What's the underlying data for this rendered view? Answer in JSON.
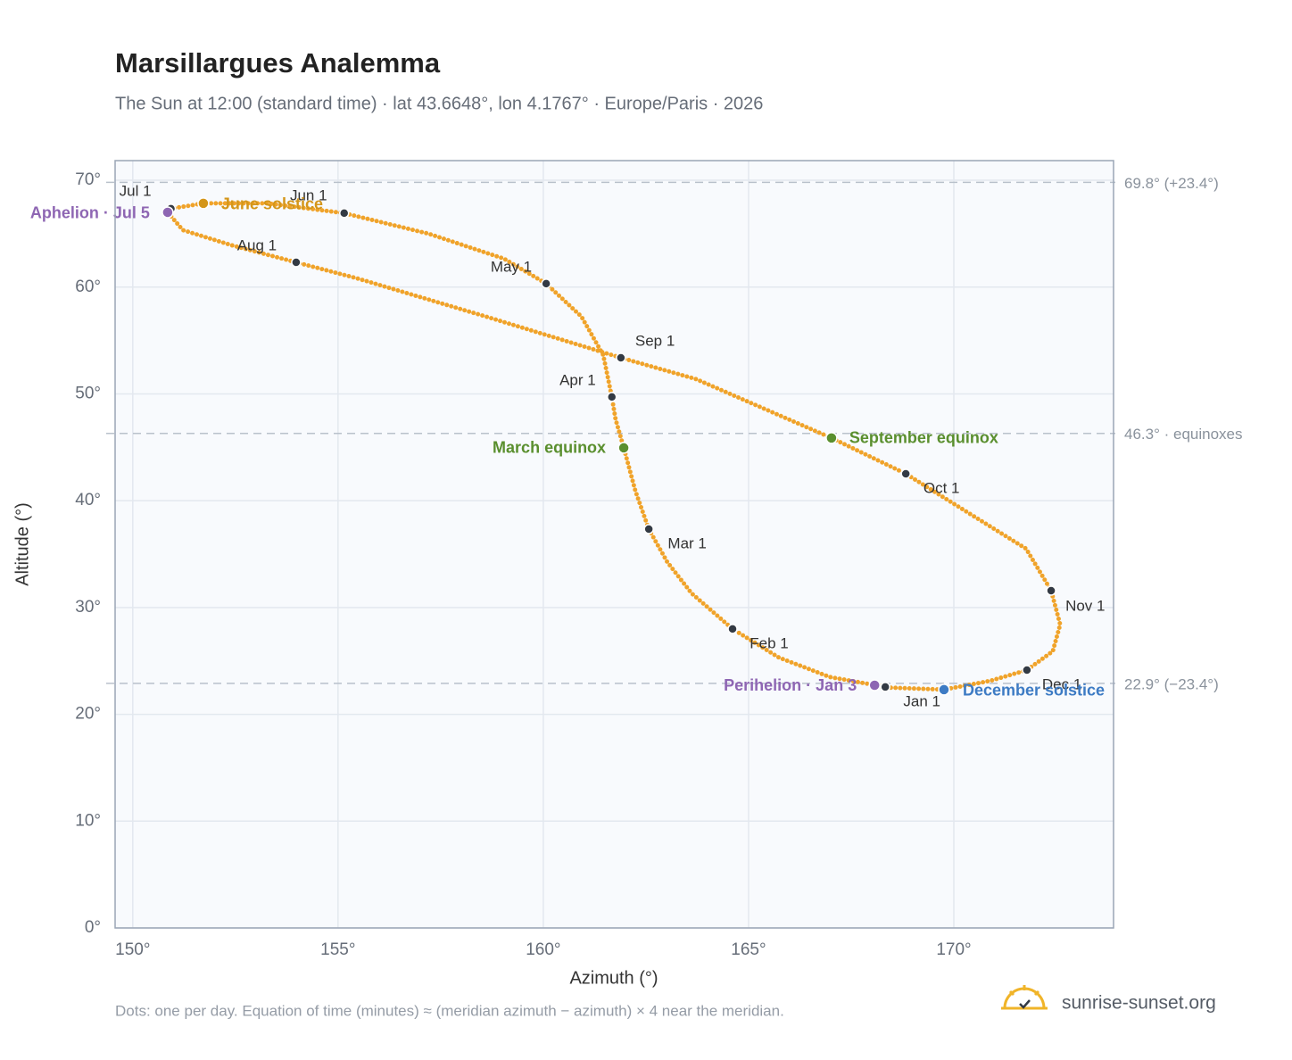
{
  "chart_data": {
    "type": "scatter",
    "title": "Marsillargues Analemma",
    "subtitle": "The Sun at 12:00 (standard time) · lat 43.6648°, lon 4.1767° · Europe/Paris · 2026",
    "xlabel": "Azimuth (°)",
    "ylabel": "Altitude (°)",
    "footnote": "Dots: one per day. Equation of time (minutes) ≈ (meridian azimuth − azimuth) × 4 near the meridian.",
    "brand": "sunrise-sunset.org",
    "xlim": [
      149.57,
      173.89
    ],
    "ylim": [
      0,
      71.84
    ],
    "xticks": [
      {
        "value": 150,
        "label": "150°"
      },
      {
        "value": 155,
        "label": "155°"
      },
      {
        "value": 160,
        "label": "160°"
      },
      {
        "value": 165,
        "label": "165°"
      },
      {
        "value": 170,
        "label": "170°"
      }
    ],
    "yticks": [
      {
        "value": 0,
        "label": "0°"
      },
      {
        "value": 10,
        "label": "10°"
      },
      {
        "value": 20,
        "label": "20°"
      },
      {
        "value": 30,
        "label": "30°"
      },
      {
        "value": 40,
        "label": "40°"
      },
      {
        "value": 50,
        "label": "50°"
      },
      {
        "value": 60,
        "label": "60°"
      },
      {
        "value": 70,
        "label": "70°"
      }
    ],
    "grid": true,
    "path_color": "#f0a32a",
    "x": [
      168.33,
      166.98,
      165.74,
      164.61,
      163.61,
      163.02,
      162.57,
      162.24,
      161.96,
      161.76,
      161.67,
      161.46,
      160.93,
      160.07,
      159.04,
      157.2,
      155.15,
      153.28,
      151.72,
      150.93,
      150.85,
      151.22,
      152.41,
      153.98,
      155.46,
      158.61,
      161.89,
      163.72,
      167.02,
      168.83,
      170.46,
      171.76,
      172.37,
      172.59,
      172.41,
      171.78,
      170.89,
      169.76,
      168.45
    ],
    "y": [
      22.56,
      23.49,
      25.31,
      27.99,
      31.33,
      34.25,
      37.34,
      40.94,
      44.95,
      47.62,
      49.71,
      53.63,
      57.23,
      60.32,
      62.66,
      65.0,
      66.92,
      67.84,
      67.84,
      67.34,
      67.0,
      65.33,
      63.91,
      62.32,
      60.82,
      57.23,
      53.38,
      51.38,
      45.87,
      42.52,
      38.6,
      35.5,
      31.58,
      28.4,
      25.9,
      24.14,
      23.14,
      22.31,
      22.5
    ],
    "reference_lines": [
      {
        "value": 69.8,
        "label": "69.8° (+23.4°)"
      },
      {
        "value": 46.3,
        "label": "46.3° · equinoxes"
      },
      {
        "value": 22.9,
        "label": "22.9° (−23.4°)"
      }
    ],
    "points": [
      {
        "label": "Jan 1",
        "x": 168.33,
        "y": 22.56,
        "color": "#333a44"
      },
      {
        "label": "Feb 1",
        "x": 164.61,
        "y": 27.99,
        "color": "#333a44"
      },
      {
        "label": "Mar 1",
        "x": 162.57,
        "y": 37.34,
        "color": "#333a44"
      },
      {
        "label": "Apr 1",
        "x": 161.67,
        "y": 49.71,
        "color": "#333a44"
      },
      {
        "label": "May 1",
        "x": 160.07,
        "y": 60.32,
        "color": "#333a44"
      },
      {
        "label": "Jun 1",
        "x": 155.15,
        "y": 66.92,
        "color": "#333a44"
      },
      {
        "label": "Jul 1",
        "x": 150.93,
        "y": 67.34,
        "color": "#333a44"
      },
      {
        "label": "Aug 1",
        "x": 153.98,
        "y": 62.32,
        "color": "#333a44"
      },
      {
        "label": "Sep 1",
        "x": 161.89,
        "y": 53.38,
        "color": "#333a44"
      },
      {
        "label": "Oct 1",
        "x": 168.83,
        "y": 42.52,
        "color": "#333a44"
      },
      {
        "label": "Nov 1",
        "x": 172.37,
        "y": 31.58,
        "color": "#333a44"
      },
      {
        "label": "Dec 1",
        "x": 171.78,
        "y": 24.14,
        "color": "#333a44"
      },
      {
        "label": "Aphelion · Jul 5",
        "x": 150.85,
        "y": 67.0,
        "color": "#8e66b3"
      },
      {
        "label": "June solstice",
        "x": 151.72,
        "y": 67.84,
        "color": "#d4961a"
      },
      {
        "label": "March equinox",
        "x": 161.96,
        "y": 44.95,
        "color": "#5a8f2e"
      },
      {
        "label": "September equinox",
        "x": 167.02,
        "y": 45.87,
        "color": "#5a8f2e"
      },
      {
        "label": "Perihelion · Jan 3",
        "x": 168.07,
        "y": 22.72,
        "color": "#8e66b3"
      },
      {
        "label": "December solstice",
        "x": 169.76,
        "y": 22.31,
        "color": "#3d7bc4"
      }
    ]
  }
}
